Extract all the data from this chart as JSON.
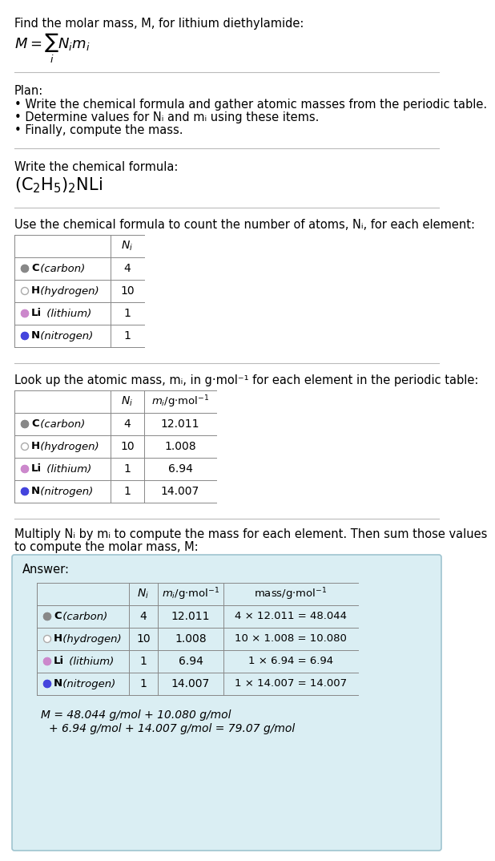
{
  "title_line": "Find the molar mass, M, for lithium diethylamide:",
  "plan_header": "Plan:",
  "plan_bullets": [
    "• Write the chemical formula and gather atomic masses from the periodic table.",
    "• Determine values for Nᵢ and mᵢ using these items.",
    "• Finally, compute the mass."
  ],
  "step1_header": "Write the chemical formula:",
  "step2_header": "Use the chemical formula to count the number of atoms, Nᵢ, for each element:",
  "step3_header": "Look up the atomic mass, mᵢ, in g·mol⁻¹ for each element in the periodic table:",
  "step4_header1": "Multiply Nᵢ by mᵢ to compute the mass for each element. Then sum those values",
  "step4_header2": "to compute the molar mass, M:",
  "elements": [
    "C (carbon)",
    "H (hydrogen)",
    "Li (lithium)",
    "N (nitrogen)"
  ],
  "element_symbols": [
    "C",
    "H",
    "Li",
    "N"
  ],
  "element_names": [
    " (carbon)",
    " (hydrogen)",
    " (lithium)",
    " (nitrogen)"
  ],
  "dot_colors": [
    "#888888",
    "#ffffff",
    "#cc88cc",
    "#4444dd"
  ],
  "dot_outline": [
    "#888888",
    "#aaaaaa",
    "#cc88cc",
    "#4444dd"
  ],
  "Ni": [
    4,
    10,
    1,
    1
  ],
  "mi": [
    "12.011",
    "1.008",
    "6.94",
    "14.007"
  ],
  "mass_expr": [
    "4 × 12.011 = 48.044",
    "10 × 1.008 = 10.080",
    "1 × 6.94 = 6.94",
    "1 × 14.007 = 14.007"
  ],
  "answer_box_color": "#daeef3",
  "answer_box_border": "#9fc4d0",
  "final_line1": "M = 48.044 g/mol + 10.080 g/mol",
  "final_line2": "+ 6.94 g/mol + 14.007 g/mol = 79.07 g/mol",
  "bg_color": "#ffffff",
  "text_color": "#000000",
  "separator_color": "#bbbbbb",
  "table_border_color": "#888888"
}
